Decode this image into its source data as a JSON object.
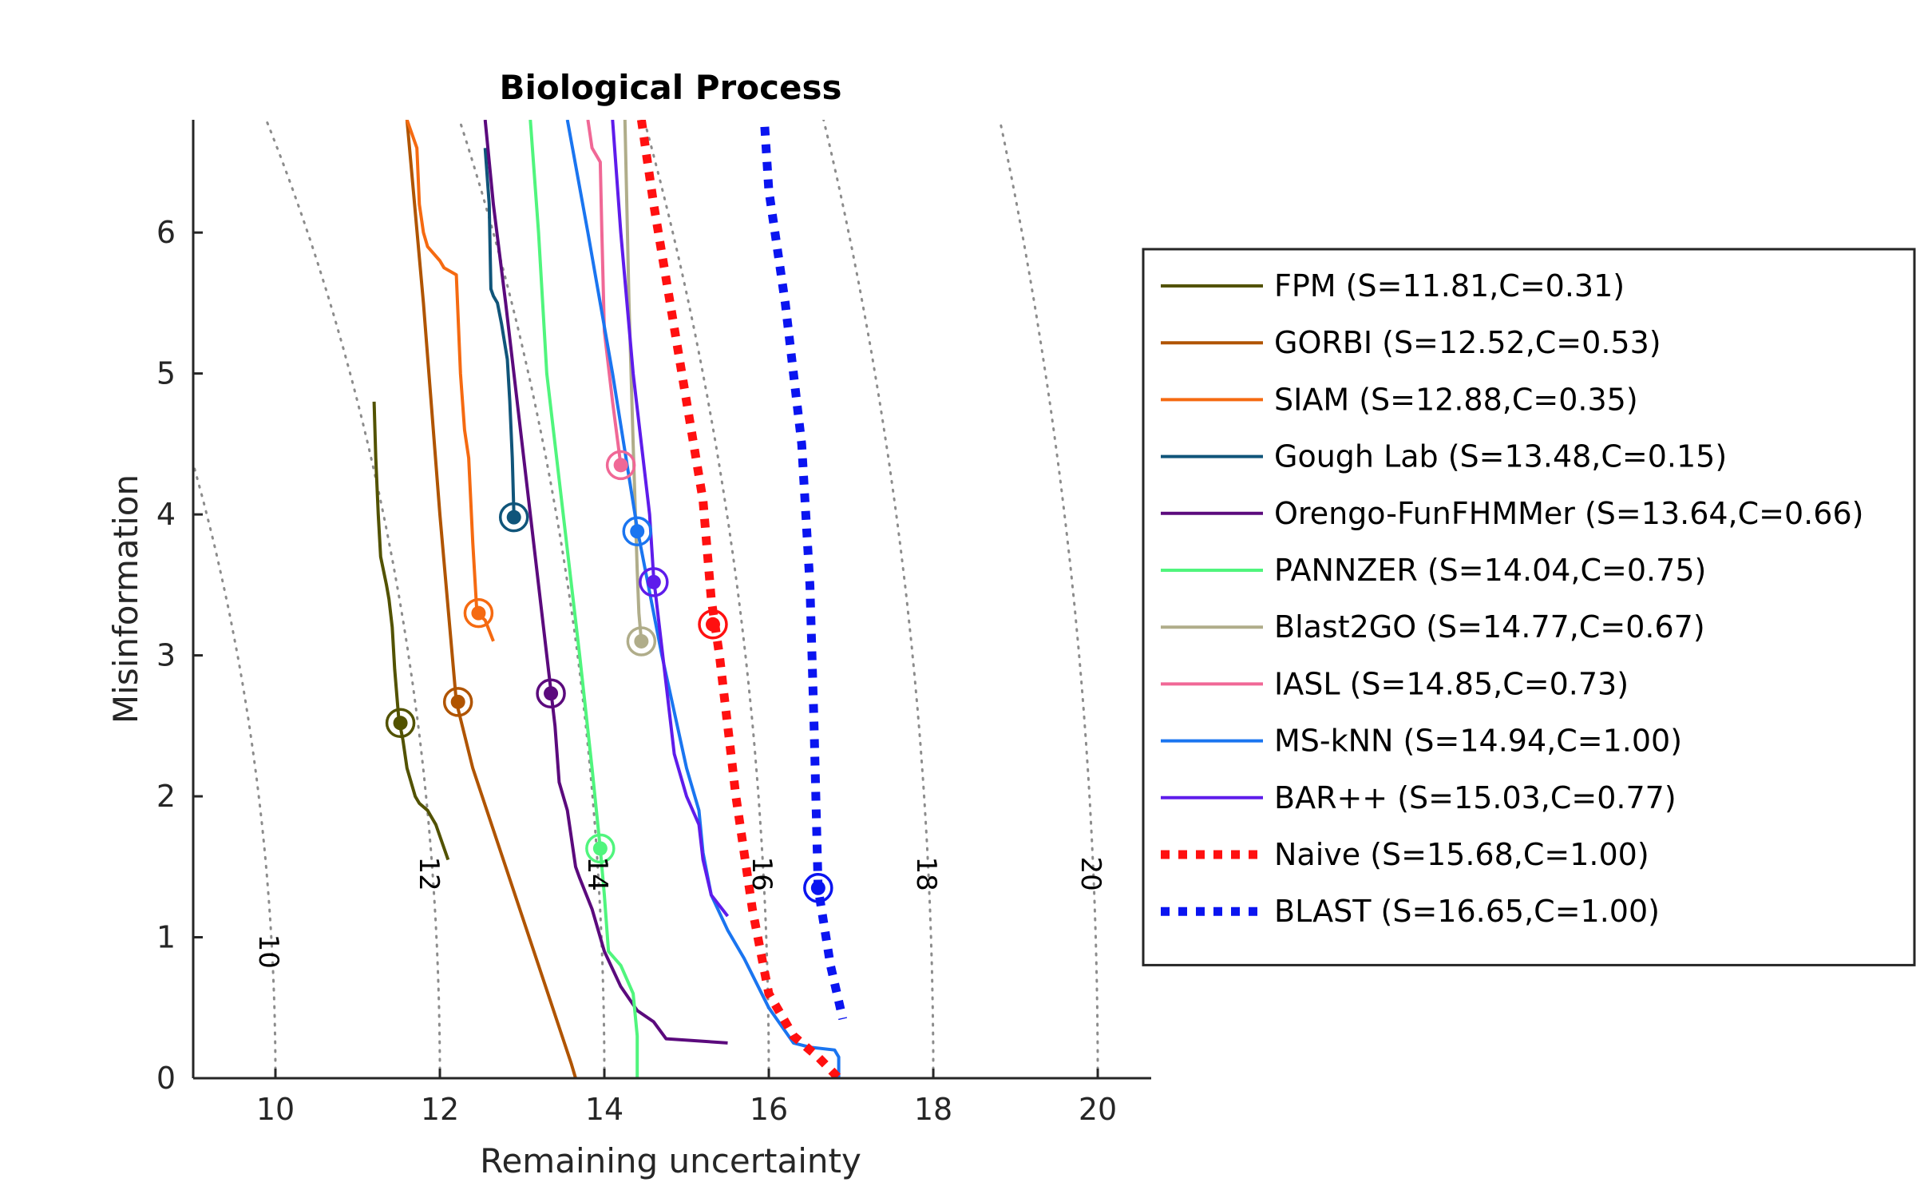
{
  "chart_data": {
    "type": "line",
    "title": "Biological Process",
    "xlabel": "Remaining uncertainty",
    "ylabel": "Misinformation",
    "xlim": [
      9,
      20.65
    ],
    "ylim": [
      0,
      6.8
    ],
    "xticks": [
      10,
      12,
      14,
      16,
      18,
      20
    ],
    "yticks": [
      0,
      1,
      2,
      3,
      4,
      5,
      6
    ],
    "grid": false,
    "legend_position": "right",
    "contours": [
      {
        "label": "10",
        "value": 10,
        "label_at": [
          9.9,
          0.9
        ]
      },
      {
        "label": "12",
        "value": 12,
        "label_at": [
          11.85,
          1.45
        ]
      },
      {
        "label": "14",
        "value": 14,
        "label_at": [
          13.9,
          1.45
        ]
      },
      {
        "label": "16",
        "value": 16,
        "label_at": [
          15.9,
          1.45
        ]
      },
      {
        "label": "18",
        "value": 18,
        "label_at": [
          17.9,
          1.45
        ]
      },
      {
        "label": "20",
        "value": 20,
        "label_at": [
          19.9,
          1.45
        ]
      }
    ],
    "series": [
      {
        "name": "FPM (S=11.81,C=0.31)",
        "color": "#525200",
        "style": "solid",
        "x": [
          11.2,
          11.22,
          11.25,
          11.28,
          11.35,
          11.38,
          11.42,
          11.45,
          11.5,
          11.55,
          11.6,
          11.7,
          11.75,
          11.85,
          11.9,
          11.95,
          12.1
        ],
        "y": [
          4.8,
          4.4,
          4.0,
          3.7,
          3.5,
          3.4,
          3.2,
          2.9,
          2.55,
          2.4,
          2.2,
          2.0,
          1.95,
          1.9,
          1.85,
          1.8,
          1.55
        ],
        "marker": [
          11.52,
          2.52
        ]
      },
      {
        "name": "GORBI (S=12.52,C=0.53)",
        "color": "#b05400",
        "style": "solid",
        "x": [
          11.6,
          11.8,
          12.0,
          12.2,
          12.4,
          12.8,
          13.2,
          13.6,
          13.65
        ],
        "y": [
          6.8,
          5.5,
          4.0,
          2.67,
          2.2,
          1.5,
          0.8,
          0.1,
          0.0
        ],
        "marker": [
          12.22,
          2.67
        ]
      },
      {
        "name": "SIAM (S=12.88,C=0.35)",
        "color": "#f56a11",
        "style": "solid",
        "x": [
          11.6,
          11.72,
          11.75,
          11.8,
          11.85,
          12.0,
          12.05,
          12.2,
          12.25,
          12.3,
          12.35,
          12.4,
          12.45,
          12.55,
          12.65
        ],
        "y": [
          6.8,
          6.6,
          6.2,
          6.0,
          5.9,
          5.8,
          5.75,
          5.7,
          5.0,
          4.6,
          4.4,
          3.8,
          3.3,
          3.25,
          3.1
        ],
        "marker": [
          12.47,
          3.3
        ]
      },
      {
        "name": "Gough Lab (S=13.48,C=0.15)",
        "color": "#10557a",
        "style": "solid",
        "x": [
          12.55,
          12.6,
          12.62,
          12.65,
          12.7,
          12.75,
          12.82,
          12.85,
          12.88,
          12.9
        ],
        "y": [
          6.6,
          6.2,
          5.6,
          5.55,
          5.5,
          5.35,
          5.1,
          4.8,
          4.4,
          4.0
        ],
        "marker": [
          12.9,
          3.98
        ]
      },
      {
        "name": "Orengo-FunFHMMer (S=13.64,C=0.66)",
        "color": "#5b0a7d",
        "style": "solid",
        "x": [
          12.55,
          12.65,
          12.8,
          13.0,
          13.2,
          13.3,
          13.4,
          13.45,
          13.55,
          13.65,
          13.7,
          13.85,
          14.0,
          14.2,
          14.4,
          14.6,
          14.75,
          15.5
        ],
        "y": [
          6.8,
          6.2,
          5.5,
          4.5,
          3.5,
          3.0,
          2.5,
          2.1,
          1.9,
          1.5,
          1.42,
          1.2,
          0.9,
          0.65,
          0.48,
          0.4,
          0.28,
          0.25
        ],
        "marker": [
          13.35,
          2.73
        ]
      },
      {
        "name": "PANNZER (S=14.04,C=0.75)",
        "color": "#50f57d",
        "style": "solid",
        "x": [
          13.1,
          13.2,
          13.3,
          13.5,
          13.7,
          13.85,
          13.95,
          14.0,
          14.05,
          14.2,
          14.35,
          14.4,
          14.4
        ],
        "y": [
          6.8,
          6.0,
          5.0,
          4.0,
          3.0,
          2.2,
          1.63,
          1.3,
          0.9,
          0.8,
          0.6,
          0.3,
          0.0
        ],
        "marker": [
          13.95,
          1.63
        ]
      },
      {
        "name": "Blast2GO (S=14.77,C=0.67)",
        "color": "#b0ad8a",
        "style": "solid",
        "x": [
          14.25,
          14.3,
          14.35,
          14.4,
          14.42,
          14.45
        ],
        "y": [
          6.8,
          5.5,
          4.5,
          3.6,
          3.3,
          3.1
        ],
        "marker": [
          14.45,
          3.1
        ]
      },
      {
        "name": "IASL (S=14.85,C=0.73)",
        "color": "#f06896",
        "style": "solid",
        "x": [
          13.8,
          13.85,
          13.95,
          13.97,
          14.0,
          14.1,
          14.2
        ],
        "y": [
          6.8,
          6.6,
          6.5,
          6.0,
          5.3,
          4.8,
          4.35
        ],
        "marker": [
          14.2,
          4.35
        ]
      },
      {
        "name": "MS-kNN (S=14.94,C=1.00)",
        "color": "#1a75f0",
        "style": "solid",
        "x": [
          13.55,
          13.8,
          14.1,
          14.4,
          14.7,
          15.0,
          15.15,
          15.2,
          15.3,
          15.5,
          15.7,
          16.0,
          16.3,
          16.5,
          16.8,
          16.85,
          16.85
        ],
        "y": [
          6.8,
          6.0,
          5.0,
          3.9,
          3.0,
          2.2,
          1.9,
          1.6,
          1.3,
          1.05,
          0.85,
          0.5,
          0.25,
          0.22,
          0.2,
          0.15,
          0.0
        ],
        "marker": [
          14.4,
          3.88
        ]
      },
      {
        "name": "BAR++ (S=15.03,C=0.77)",
        "color": "#5e1ceb",
        "style": "solid",
        "x": [
          14.1,
          14.2,
          14.35,
          14.45,
          14.55,
          14.6,
          14.75,
          14.85,
          15.0,
          15.15,
          15.2,
          15.3,
          15.5
        ],
        "y": [
          6.8,
          6.0,
          5.0,
          4.5,
          4.0,
          3.55,
          2.8,
          2.3,
          2.0,
          1.8,
          1.55,
          1.3,
          1.15
        ],
        "marker": [
          14.6,
          3.52
        ]
      },
      {
        "name": "Naive (S=15.68,C=1.00)",
        "color": "#ff1010",
        "style": "dotted",
        "x": [
          14.45,
          14.6,
          14.8,
          15.0,
          15.2,
          15.3,
          15.4,
          15.6,
          15.8,
          16.0,
          16.3,
          16.6,
          16.85
        ],
        "y": [
          6.8,
          6.2,
          5.5,
          4.8,
          4.1,
          3.4,
          3.0,
          2.0,
          1.2,
          0.6,
          0.3,
          0.15,
          0.0
        ],
        "marker": [
          15.32,
          3.22
        ]
      },
      {
        "name": "BLAST (S=16.65,C=1.00)",
        "color": "#0a14f0",
        "style": "dotted",
        "x": [
          15.95,
          16.0,
          16.2,
          16.4,
          16.5,
          16.55,
          16.58,
          16.6,
          16.75,
          16.9
        ],
        "y": [
          6.75,
          6.3,
          5.5,
          4.5,
          3.5,
          2.5,
          1.8,
          1.35,
          0.8,
          0.42
        ],
        "marker": [
          16.6,
          1.35
        ]
      }
    ]
  }
}
